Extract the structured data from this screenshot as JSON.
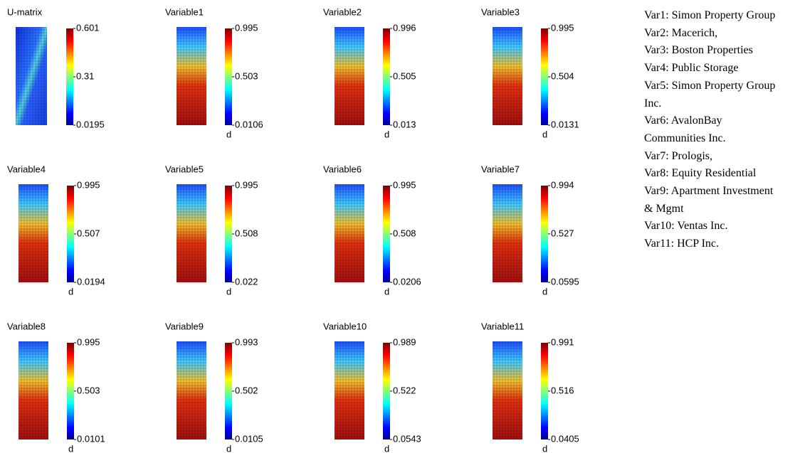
{
  "chart_data": [
    {
      "type": "heatmap",
      "title": "U-matrix",
      "ylim": [
        0.0195,
        0.601
      ],
      "yticks": [
        0.0195,
        0.31,
        0.601
      ]
    },
    {
      "type": "heatmap",
      "title": "Variable1",
      "xlabel": "d",
      "ylim": [
        0.0106,
        0.995
      ],
      "yticks": [
        0.0106,
        0.503,
        0.995
      ]
    },
    {
      "type": "heatmap",
      "title": "Variable2",
      "xlabel": "d",
      "ylim": [
        0.013,
        0.996
      ],
      "yticks": [
        0.013,
        0.505,
        0.996
      ]
    },
    {
      "type": "heatmap",
      "title": "Variable3",
      "xlabel": "d",
      "ylim": [
        0.0131,
        0.995
      ],
      "yticks": [
        0.0131,
        0.504,
        0.995
      ]
    },
    {
      "type": "heatmap",
      "title": "Variable4",
      "xlabel": "d",
      "ylim": [
        0.0194,
        0.995
      ],
      "yticks": [
        0.0194,
        0.507,
        0.995
      ]
    },
    {
      "type": "heatmap",
      "title": "Variable5",
      "xlabel": "d",
      "ylim": [
        0.022,
        0.995
      ],
      "yticks": [
        0.022,
        0.508,
        0.995
      ]
    },
    {
      "type": "heatmap",
      "title": "Variable6",
      "xlabel": "d",
      "ylim": [
        0.0206,
        0.995
      ],
      "yticks": [
        0.0206,
        0.508,
        0.995
      ]
    },
    {
      "type": "heatmap",
      "title": "Variable7",
      "xlabel": "d",
      "ylim": [
        0.0595,
        0.994
      ],
      "yticks": [
        0.0595,
        0.527,
        0.994
      ]
    },
    {
      "type": "heatmap",
      "title": "Variable8",
      "xlabel": "d",
      "ylim": [
        0.0101,
        0.995
      ],
      "yticks": [
        0.0101,
        0.503,
        0.995
      ]
    },
    {
      "type": "heatmap",
      "title": "Variable9",
      "xlabel": "d",
      "ylim": [
        0.0105,
        0.993
      ],
      "yticks": [
        0.0105,
        0.502,
        0.993
      ]
    },
    {
      "type": "heatmap",
      "title": "Variable10",
      "xlabel": "d",
      "ylim": [
        0.0543,
        0.989
      ],
      "yticks": [
        0.0543,
        0.522,
        0.989
      ]
    },
    {
      "type": "heatmap",
      "title": "Variable11",
      "xlabel": "d",
      "ylim": [
        0.0405,
        0.991
      ],
      "yticks": [
        0.0405,
        0.516,
        0.991
      ]
    }
  ],
  "notes": [
    "Var1: Simon Property Group",
    "Var2: Macerich,",
    "Var3: Boston Properties",
    "Var4: Public Storage",
    "Var5: Simon Property Group Inc.",
    "Var6: AvalonBay Communities Inc.",
    "Var7: Prologis,",
    "Var8: Equity Residential",
    "Var9: Apartment Investment & Mgmt",
    "Var10: Ventas Inc.",
    "Var11: HCP Inc."
  ]
}
